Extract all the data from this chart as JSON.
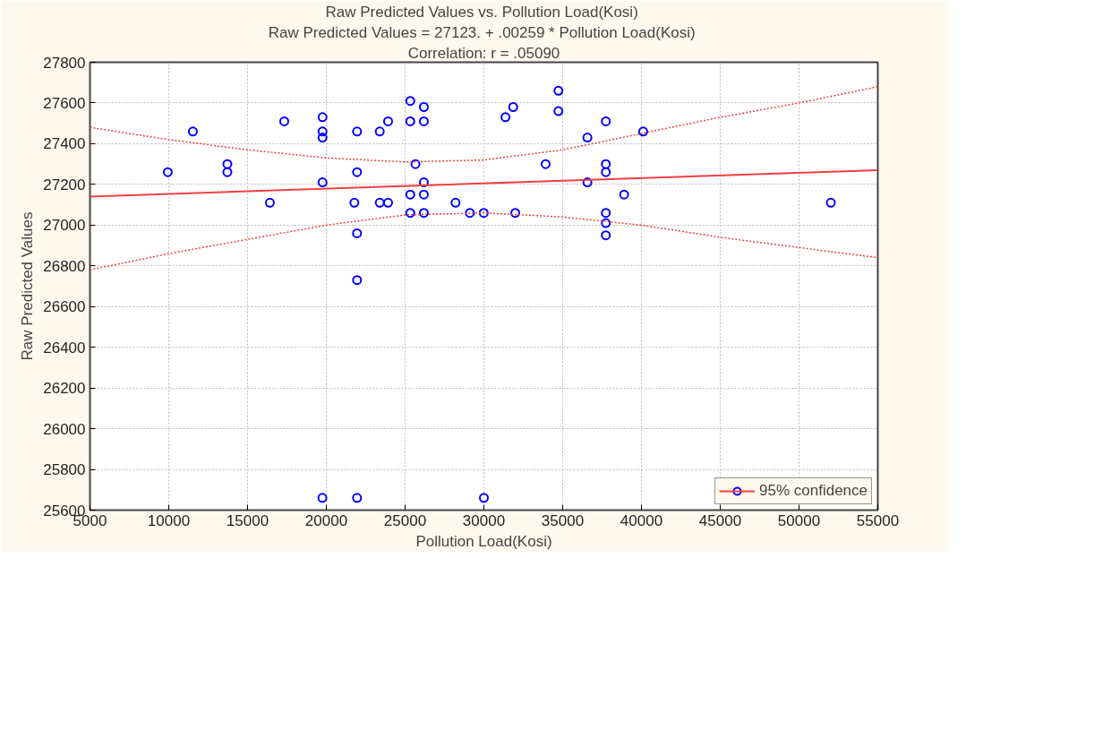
{
  "chart_data": {
    "type": "scatter",
    "title": "Raw Predicted Values  vs. Pollution Load(Kosi)",
    "subtitle": "Raw Predicted Values  = 27123. + .00259 * Pollution Load(Kosi)",
    "annotations": [
      "Correlation: r = .05090"
    ],
    "xlabel": "Pollution Load(Kosi)",
    "ylabel": "Raw Predicted Values",
    "xlim": [
      5000,
      55000
    ],
    "ylim": [
      25600,
      27800
    ],
    "xticks": [
      5000,
      10000,
      15000,
      20000,
      25000,
      30000,
      35000,
      40000,
      45000,
      50000,
      55000
    ],
    "yticks": [
      25600,
      25800,
      26000,
      26200,
      26400,
      26600,
      26800,
      27000,
      27200,
      27400,
      27600,
      27800
    ],
    "grid": true,
    "legend": "bottom right",
    "series": [
      {
        "color": "#0000ff",
        "marker": "circle",
        "x": [
          9940,
          11530,
          13720,
          13720,
          16420,
          17330,
          19760,
          19760,
          19760,
          19760,
          21950,
          21950,
          21780,
          21950,
          21950,
          23390,
          23920,
          23390,
          23920,
          25330,
          26190,
          25330,
          26190,
          25660,
          26190,
          25330,
          26190,
          25330,
          26190,
          28200,
          29110,
          29990,
          31990,
          31370,
          31860,
          33920,
          34730,
          34730,
          37740,
          36570,
          40110,
          37740,
          37740,
          36570,
          38900,
          37740,
          37740,
          37740,
          52020,
          19750,
          21950,
          30000
        ],
        "values": [
          27260,
          27460,
          27300,
          27260,
          27110,
          27510,
          27530,
          27460,
          27430,
          27210,
          27460,
          27260,
          27110,
          26960,
          26730,
          27460,
          27510,
          27110,
          27110,
          27610,
          27580,
          27510,
          27510,
          27300,
          27210,
          27150,
          27150,
          27060,
          27060,
          27110,
          27060,
          27060,
          27060,
          27530,
          27580,
          27300,
          27660,
          27560,
          27510,
          27430,
          27460,
          27300,
          27260,
          27210,
          27150,
          27060,
          27010,
          26950,
          27110,
          25660,
          25660,
          25660
        ]
      },
      {
        "type": "line",
        "name": "95% confidence",
        "color": "#f04040",
        "line_style": "solid",
        "marker": "none",
        "x": [
          5000,
          55000
        ],
        "values": [
          27140,
          27270
        ]
      },
      {
        "type": "line",
        "color": "#f04040",
        "line_style": "dotted",
        "marker": "none",
        "x": [
          5000,
          10000,
          15000,
          20000,
          25000,
          30000,
          35000,
          40000,
          45000,
          50000,
          55000
        ],
        "values": [
          26780,
          26860,
          26930,
          27000,
          27050,
          27060,
          27040,
          27000,
          26940,
          26890,
          26840
        ]
      },
      {
        "type": "line",
        "color": "#f04040",
        "line_style": "dotted",
        "marker": "none",
        "x": [
          5000,
          10000,
          15000,
          20000,
          25000,
          30000,
          35000,
          40000,
          45000,
          50000,
          55000
        ],
        "values": [
          27480,
          27420,
          27370,
          27330,
          27310,
          27320,
          27370,
          27450,
          27530,
          27600,
          27680
        ]
      }
    ]
  }
}
